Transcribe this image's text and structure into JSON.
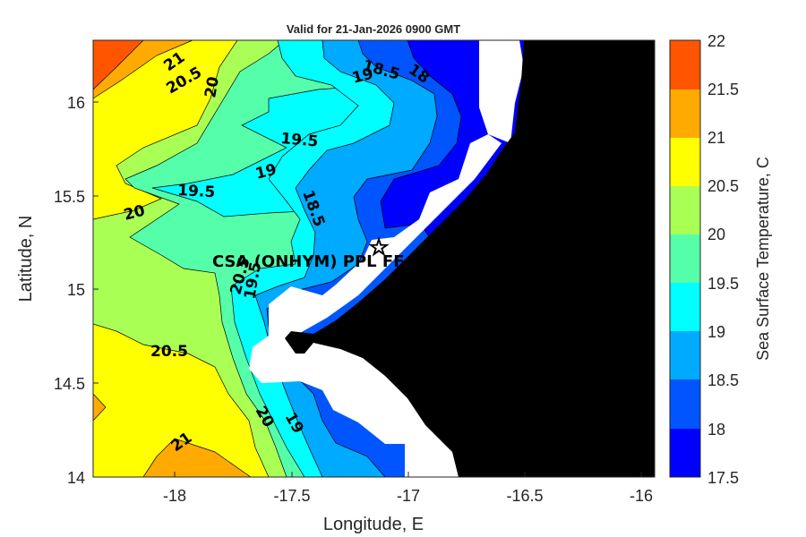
{
  "map": {
    "title": "Valid for 21-Jan-2026 0900 GMT",
    "xlabel": "Longitude, E",
    "ylabel": "Latitude, N",
    "x_ticks": [
      "-18",
      "-17.5",
      "-17",
      "-16.5",
      "-16"
    ],
    "y_ticks": [
      "16",
      "15.5",
      "15",
      "14.5",
      "14"
    ],
    "station_label": "CSA (ONHYM) PPL FF",
    "contour_labels": [
      "21",
      "20.5",
      "20",
      "19",
      "18.5",
      "18",
      "19.5",
      "19",
      "19.5",
      "18.5",
      "20",
      "20.5",
      "19.5",
      "20.5",
      "20",
      "19",
      "21"
    ]
  },
  "colorbar": {
    "label": "Sea Surface Temperature, C",
    "ticks": [
      "22",
      "21.5",
      "21",
      "20.5",
      "20",
      "19.5",
      "19",
      "18.5",
      "18",
      "17.5"
    ],
    "colors": [
      "#ff5500",
      "#ffaa00",
      "#ffff00",
      "#aaff55",
      "#55ffaa",
      "#00ffff",
      "#00aaff",
      "#0055ff",
      "#0000ff"
    ]
  }
}
